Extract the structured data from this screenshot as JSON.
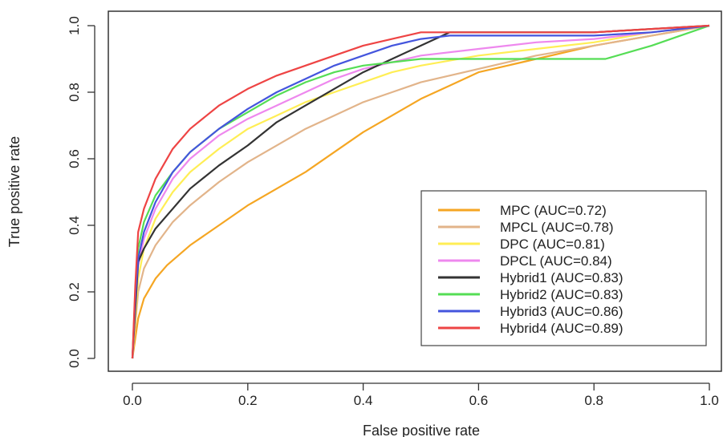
{
  "chart_data": {
    "type": "line",
    "title": "",
    "xlabel": "False positive rate",
    "ylabel": "True positive rate",
    "xlim": [
      0,
      1
    ],
    "ylim": [
      0,
      1
    ],
    "x_ticks": [
      "0.0",
      "0.2",
      "0.4",
      "0.6",
      "0.8",
      "1.0"
    ],
    "y_ticks": [
      "0.0",
      "0.2",
      "0.4",
      "0.6",
      "0.8",
      "1.0"
    ],
    "grid": false,
    "legend_position": "bottom-right",
    "series": [
      {
        "name": "MPC (AUC=0.72)",
        "color": "#f5a623",
        "points": [
          [
            0,
            0
          ],
          [
            0.005,
            0.06
          ],
          [
            0.01,
            0.12
          ],
          [
            0.02,
            0.18
          ],
          [
            0.04,
            0.24
          ],
          [
            0.06,
            0.28
          ],
          [
            0.1,
            0.34
          ],
          [
            0.15,
            0.4
          ],
          [
            0.2,
            0.46
          ],
          [
            0.25,
            0.51
          ],
          [
            0.3,
            0.56
          ],
          [
            0.35,
            0.62
          ],
          [
            0.4,
            0.68
          ],
          [
            0.45,
            0.73
          ],
          [
            0.5,
            0.78
          ],
          [
            0.55,
            0.82
          ],
          [
            0.6,
            0.86
          ],
          [
            0.7,
            0.9
          ],
          [
            0.8,
            0.94
          ],
          [
            0.9,
            0.97
          ],
          [
            1.0,
            1.0
          ]
        ]
      },
      {
        "name": "MPCL (AUC=0.78)",
        "color": "#e2b48a",
        "points": [
          [
            0,
            0
          ],
          [
            0.005,
            0.1
          ],
          [
            0.01,
            0.2
          ],
          [
            0.02,
            0.27
          ],
          [
            0.04,
            0.34
          ],
          [
            0.07,
            0.41
          ],
          [
            0.1,
            0.46
          ],
          [
            0.15,
            0.53
          ],
          [
            0.2,
            0.59
          ],
          [
            0.25,
            0.64
          ],
          [
            0.3,
            0.69
          ],
          [
            0.35,
            0.73
          ],
          [
            0.4,
            0.77
          ],
          [
            0.45,
            0.8
          ],
          [
            0.5,
            0.83
          ],
          [
            0.6,
            0.87
          ],
          [
            0.7,
            0.91
          ],
          [
            0.8,
            0.94
          ],
          [
            0.9,
            0.97
          ],
          [
            1.0,
            1.0
          ]
        ]
      },
      {
        "name": "DPC (AUC=0.81)",
        "color": "#ffee55",
        "points": [
          [
            0,
            0
          ],
          [
            0.005,
            0.12
          ],
          [
            0.01,
            0.24
          ],
          [
            0.02,
            0.33
          ],
          [
            0.04,
            0.42
          ],
          [
            0.07,
            0.5
          ],
          [
            0.1,
            0.56
          ],
          [
            0.15,
            0.63
          ],
          [
            0.2,
            0.69
          ],
          [
            0.25,
            0.73
          ],
          [
            0.3,
            0.77
          ],
          [
            0.35,
            0.8
          ],
          [
            0.4,
            0.83
          ],
          [
            0.45,
            0.86
          ],
          [
            0.5,
            0.88
          ],
          [
            0.6,
            0.91
          ],
          [
            0.7,
            0.93
          ],
          [
            0.8,
            0.95
          ],
          [
            0.9,
            0.98
          ],
          [
            1.0,
            1.0
          ]
        ]
      },
      {
        "name": "DPCL (AUC=0.84)",
        "color": "#ee88ee",
        "points": [
          [
            0,
            0
          ],
          [
            0.005,
            0.15
          ],
          [
            0.01,
            0.28
          ],
          [
            0.02,
            0.36
          ],
          [
            0.04,
            0.45
          ],
          [
            0.07,
            0.54
          ],
          [
            0.1,
            0.6
          ],
          [
            0.15,
            0.67
          ],
          [
            0.2,
            0.72
          ],
          [
            0.25,
            0.76
          ],
          [
            0.3,
            0.8
          ],
          [
            0.35,
            0.84
          ],
          [
            0.4,
            0.87
          ],
          [
            0.45,
            0.89
          ],
          [
            0.5,
            0.91
          ],
          [
            0.6,
            0.93
          ],
          [
            0.7,
            0.95
          ],
          [
            0.8,
            0.96
          ],
          [
            0.9,
            0.98
          ],
          [
            1.0,
            1.0
          ]
        ]
      },
      {
        "name": "Hybrid1 (AUC=0.83)",
        "color": "#333333",
        "points": [
          [
            0,
            0
          ],
          [
            0.005,
            0.15
          ],
          [
            0.01,
            0.29
          ],
          [
            0.02,
            0.33
          ],
          [
            0.04,
            0.39
          ],
          [
            0.07,
            0.45
          ],
          [
            0.1,
            0.51
          ],
          [
            0.15,
            0.58
          ],
          [
            0.2,
            0.64
          ],
          [
            0.25,
            0.71
          ],
          [
            0.3,
            0.76
          ],
          [
            0.35,
            0.81
          ],
          [
            0.4,
            0.86
          ],
          [
            0.45,
            0.9
          ],
          [
            0.5,
            0.94
          ],
          [
            0.55,
            0.98
          ],
          [
            0.6,
            0.98
          ],
          [
            0.7,
            0.98
          ],
          [
            0.8,
            0.98
          ],
          [
            0.9,
            0.99
          ],
          [
            1.0,
            1.0
          ]
        ]
      },
      {
        "name": "Hybrid2 (AUC=0.83)",
        "color": "#55dd55",
        "points": [
          [
            0,
            0
          ],
          [
            0.005,
            0.2
          ],
          [
            0.01,
            0.33
          ],
          [
            0.02,
            0.41
          ],
          [
            0.04,
            0.49
          ],
          [
            0.07,
            0.56
          ],
          [
            0.1,
            0.62
          ],
          [
            0.15,
            0.69
          ],
          [
            0.2,
            0.74
          ],
          [
            0.25,
            0.79
          ],
          [
            0.3,
            0.83
          ],
          [
            0.35,
            0.86
          ],
          [
            0.4,
            0.88
          ],
          [
            0.45,
            0.89
          ],
          [
            0.5,
            0.9
          ],
          [
            0.6,
            0.9
          ],
          [
            0.7,
            0.9
          ],
          [
            0.8,
            0.9
          ],
          [
            0.82,
            0.9
          ],
          [
            0.9,
            0.94
          ],
          [
            0.95,
            0.97
          ],
          [
            1.0,
            1.0
          ]
        ]
      },
      {
        "name": "Hybrid3 (AUC=0.86)",
        "color": "#4455dd",
        "points": [
          [
            0,
            0
          ],
          [
            0.005,
            0.18
          ],
          [
            0.01,
            0.3
          ],
          [
            0.02,
            0.38
          ],
          [
            0.04,
            0.47
          ],
          [
            0.07,
            0.56
          ],
          [
            0.1,
            0.62
          ],
          [
            0.15,
            0.69
          ],
          [
            0.2,
            0.75
          ],
          [
            0.25,
            0.8
          ],
          [
            0.3,
            0.84
          ],
          [
            0.35,
            0.88
          ],
          [
            0.4,
            0.91
          ],
          [
            0.45,
            0.94
          ],
          [
            0.5,
            0.96
          ],
          [
            0.55,
            0.97
          ],
          [
            0.6,
            0.97
          ],
          [
            0.7,
            0.97
          ],
          [
            0.8,
            0.97
          ],
          [
            0.9,
            0.98
          ],
          [
            1.0,
            1.0
          ]
        ]
      },
      {
        "name": "Hybrid4 (AUC=0.89)",
        "color": "#ee4444",
        "points": [
          [
            0,
            0
          ],
          [
            0.005,
            0.22
          ],
          [
            0.01,
            0.38
          ],
          [
            0.02,
            0.45
          ],
          [
            0.04,
            0.54
          ],
          [
            0.07,
            0.63
          ],
          [
            0.1,
            0.69
          ],
          [
            0.15,
            0.76
          ],
          [
            0.2,
            0.81
          ],
          [
            0.25,
            0.85
          ],
          [
            0.3,
            0.88
          ],
          [
            0.35,
            0.91
          ],
          [
            0.4,
            0.94
          ],
          [
            0.45,
            0.96
          ],
          [
            0.5,
            0.98
          ],
          [
            0.6,
            0.98
          ],
          [
            0.7,
            0.98
          ],
          [
            0.8,
            0.98
          ],
          [
            0.9,
            0.99
          ],
          [
            1.0,
            1.0
          ]
        ]
      }
    ]
  }
}
